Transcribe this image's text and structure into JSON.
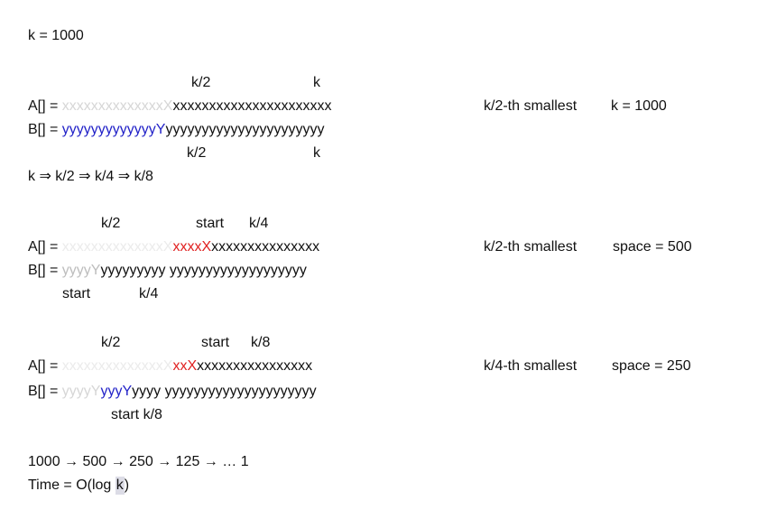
{
  "header": {
    "k_line": "k = 1000"
  },
  "block1": {
    "label_top_k2": "k/2",
    "label_top_k": "k",
    "a_prefix": "A[] = ",
    "a_faint": "xxxxxxxxxxxxxxX",
    "a_rest": "xxxxxxxxxxxxxxxxxxxxxx",
    "b_prefix": "B[] = ",
    "b_blue": "yyyyyyyyyyyyyY",
    "b_rest": "yyyyyyyyyyyyyyyyyyyyyy",
    "label_bottom_k2": "k/2",
    "label_bottom_k": "k",
    "note_left": "k/2-th smallest",
    "note_right": "k = 1000",
    "sequence": "k ⇒  k/2 ⇒ k/4 ⇒  k/8"
  },
  "block2": {
    "label_k2": "k/2",
    "label_start": "start",
    "label_k4": "k/4",
    "a_prefix": "A[] = ",
    "a_faint": "xxxxxxxxxxxxxxX",
    "a_red": "xxxxX",
    "a_rest": "xxxxxxxxxxxxxxx",
    "b_prefix": "B[] = ",
    "b_faint": "yyyyY",
    "b_rest": "yyyyyyyyy yyyyyyyyyyyyyyyyyyy",
    "label_b_start": "start",
    "label_b_k4": "k/4",
    "note_left": "k/2-th smallest",
    "note_right": "space = 500"
  },
  "block3": {
    "label_k2": "k/2",
    "label_start": "start",
    "label_k8": "k/8",
    "a_prefix": "A[] = ",
    "a_faint": "xxxxxxxxxxxxxxX",
    "a_red": "xxX",
    "a_rest": "xxxxxxxxxxxxxxxx",
    "b_prefix": "B[] = ",
    "b_faint": "yyyyY",
    "b_blue": "yyyY",
    "b_rest": "yyyy  yyyyyyyyyyyyyyyyyyyyy",
    "label_b_start_k8": "start k/8",
    "note_left": "k/4-th smallest",
    "note_right": "space = 250"
  },
  "footer": {
    "sequence": "1000 → 500 → 250 → 125 → … 1",
    "time_prefix": "Time = O(log ",
    "time_k": "k",
    "time_suffix": ")"
  }
}
